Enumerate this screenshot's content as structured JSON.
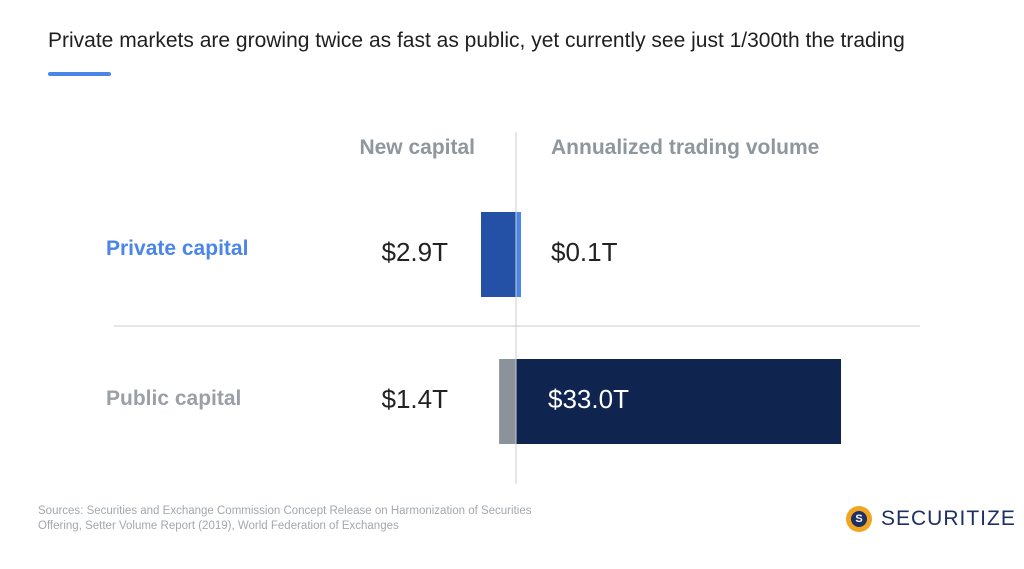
{
  "title": "Private markets are growing twice as fast as public, yet currently see just 1/300th the trading",
  "chart_data": {
    "type": "bar",
    "orientation": "horizontal-diverging",
    "column_headers": [
      "New capital",
      "Annualized trading volume"
    ],
    "categories": [
      "Private capital",
      "Public capital"
    ],
    "series": [
      {
        "name": "New capital",
        "values": [
          2.9,
          1.4
        ],
        "labels": [
          "$2.9T",
          "$1.4T"
        ]
      },
      {
        "name": "Annualized trading volume",
        "values": [
          0.1,
          33.0
        ],
        "labels": [
          "$0.1T",
          "$33.0T"
        ]
      }
    ],
    "unit": "T",
    "colors": {
      "private_new": "#2451a6",
      "private_volume": "#4a86e8",
      "public_new": "#8b9299",
      "public_volume": "#0f2550",
      "private_label": "#4a86e8",
      "public_label": "#9aa0a6"
    }
  },
  "footer": {
    "sources": "Sources: Securities and Exchange Commission Concept Release on Harmonization of Securities Offering, Setter Volume Report (2019), World Federation of Exchanges",
    "brand": "SECURITIZE",
    "brand_icon_letter": "S"
  }
}
